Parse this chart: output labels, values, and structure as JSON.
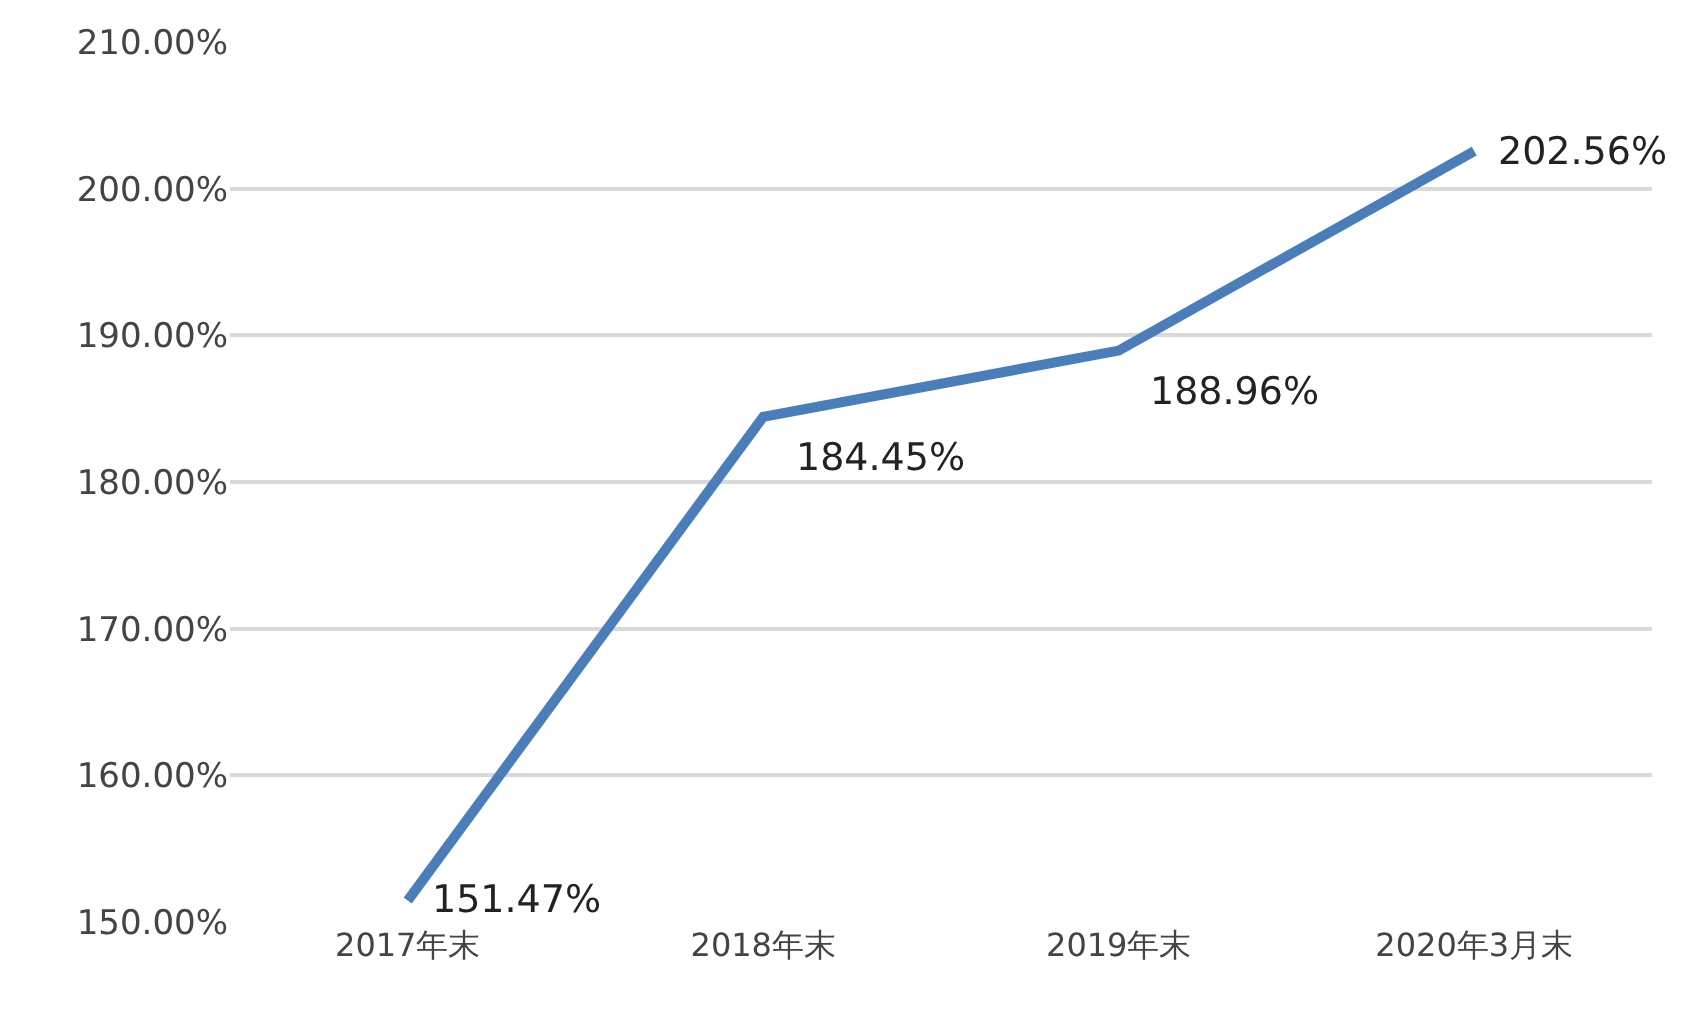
{
  "chart_data": {
    "type": "line",
    "categories": [
      "2017年末",
      "2018年末",
      "2019年末",
      "2020年3月末"
    ],
    "series": [
      {
        "color": "#4a7ebb",
        "values": [
          151.47,
          184.45,
          188.96,
          202.56
        ],
        "value_labels": [
          "151.47%",
          "184.45%",
          "188.96%",
          "202.56%"
        ]
      }
    ],
    "ylim": [
      150,
      210
    ],
    "yticks": [
      {
        "value": 150,
        "label": "150.00%"
      },
      {
        "value": 160,
        "label": "160.00%"
      },
      {
        "value": 170,
        "label": "170.00%"
      },
      {
        "value": 180,
        "label": "180.00%"
      },
      {
        "value": 190,
        "label": "190.00%"
      },
      {
        "value": 200,
        "label": "200.00%"
      },
      {
        "value": 210,
        "label": "210.00%"
      }
    ],
    "grid": "y",
    "marker": "none",
    "line_style": "solid"
  }
}
